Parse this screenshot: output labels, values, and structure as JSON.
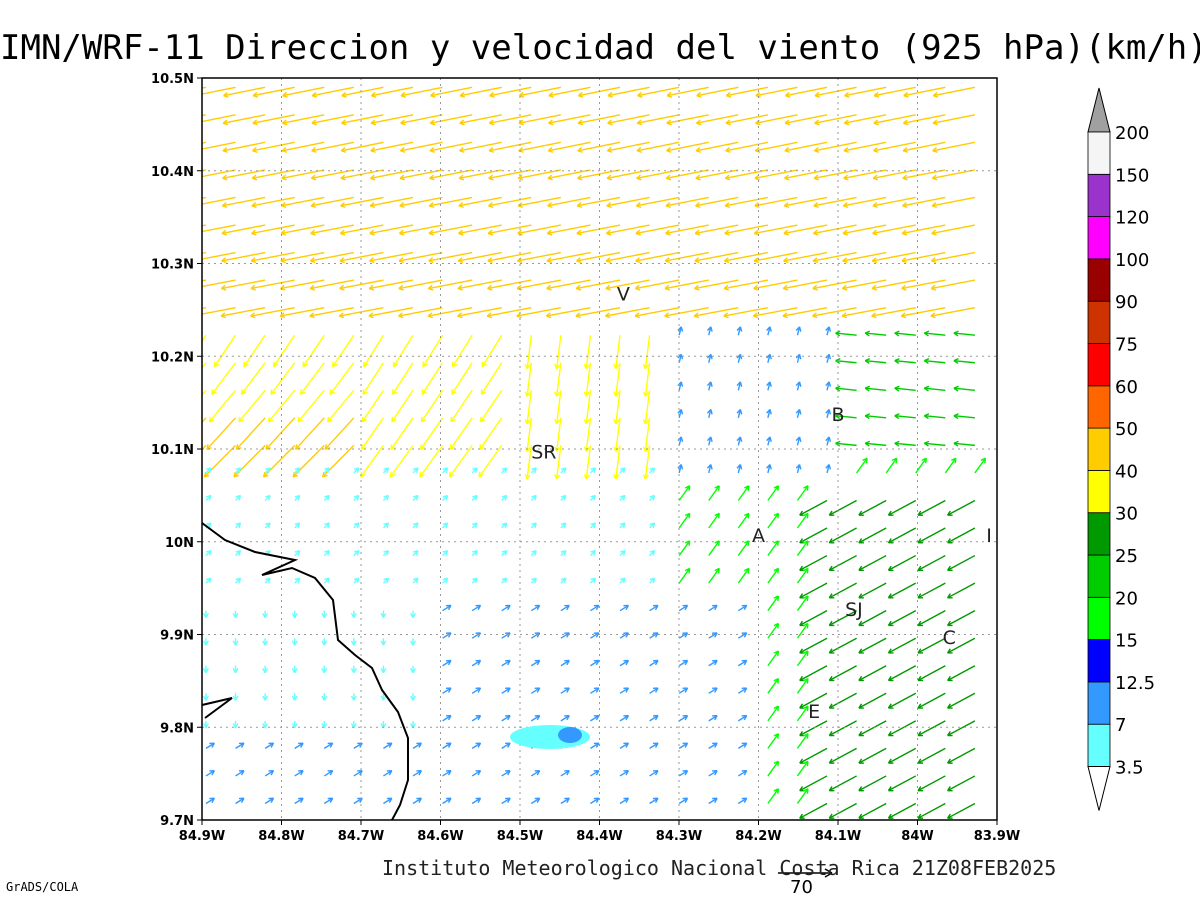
{
  "title": "IMN/WRF-11 Direccion y velocidad del viento (925 hPa)(km/h)",
  "credit": "Instituto Meteorologico Nacional Costa Rica 21Z08FEB2025",
  "software": "GrADS/COLA",
  "reference_vector": {
    "value": "70"
  },
  "axes": {
    "lon_ticks": [
      "84.9W",
      "84.8W",
      "84.7W",
      "84.6W",
      "84.5W",
      "84.4W",
      "84.3W",
      "84.2W",
      "84.1W",
      "84W",
      "83.9W"
    ],
    "lat_ticks": [
      "9.7N",
      "9.8N",
      "9.9N",
      "10N",
      "10.1N",
      "10.2N",
      "10.3N",
      "10.4N",
      "10.5N"
    ],
    "lon_range": [
      -84.9,
      -83.9
    ],
    "lat_range": [
      9.7,
      10.5
    ],
    "grid": true
  },
  "colorbar": {
    "labels": [
      "3.5",
      "7",
      "12.5",
      "15",
      "20",
      "25",
      "30",
      "40",
      "50",
      "60",
      "75",
      "90",
      "100",
      "120",
      "150",
      "200"
    ],
    "colors": [
      "#66ffff",
      "#3399ff",
      "#0000ff",
      "#00ff00",
      "#00cc00",
      "#009900",
      "#ffff00",
      "#ffcc00",
      "#ff6600",
      "#ff0000",
      "#cc3300",
      "#990000",
      "#ff00ff",
      "#9933cc",
      "#f5f5f5",
      "#a0a0a0"
    ]
  },
  "places": [
    {
      "label": "V",
      "lon": -84.37,
      "lat": 10.26
    },
    {
      "label": "SR",
      "lon": -84.47,
      "lat": 10.09
    },
    {
      "label": "B",
      "lon": -84.1,
      "lat": 10.13
    },
    {
      "label": "A",
      "lon": -84.2,
      "lat": 10.0
    },
    {
      "label": "I",
      "lon": -83.91,
      "lat": 10.0
    },
    {
      "label": "SJ",
      "lon": -84.08,
      "lat": 9.92
    },
    {
      "label": "C",
      "lon": -83.96,
      "lat": 9.89
    },
    {
      "label": "E",
      "lon": -84.13,
      "lat": 9.81
    }
  ]
}
